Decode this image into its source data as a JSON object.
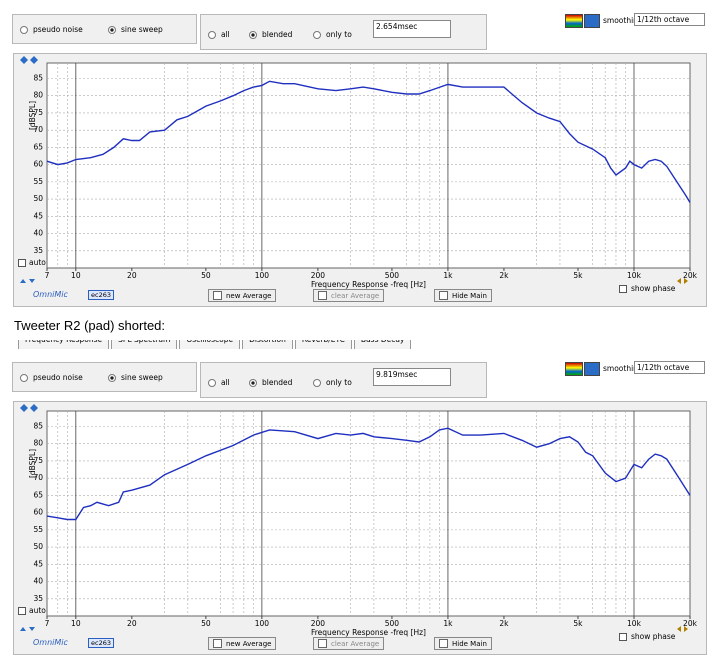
{
  "caption": "Tweeter R2 (pad) shorted:",
  "panels": [
    {
      "source_options": [
        "pseudo noise",
        "sine sweep"
      ],
      "window_options": [
        "all",
        "blended",
        "only to"
      ],
      "time": "2.654msec",
      "smoothing_label": "smoothing",
      "smoothing": "1/12th octave",
      "auto": "auto",
      "brand": "OmniMic",
      "mic": "ec263",
      "buttons": [
        "new Average",
        "clear Average",
        "Hide Main"
      ],
      "show_phase": "show phase"
    },
    {
      "tabs": [
        "Frequency Response",
        "SPL Spectrum",
        "Oscilloscope",
        "Distortion",
        "Reverb/ETC",
        "Bass Decay"
      ],
      "source_options": [
        "pseudo noise",
        "sine sweep"
      ],
      "window_options": [
        "all",
        "blended",
        "only to"
      ],
      "time": "9.819msec",
      "smoothing_label": "smoothing",
      "smoothing": "1/12th octave",
      "auto": "auto",
      "brand": "OmniMic",
      "mic": "ec263",
      "buttons": [
        "new Average",
        "clear Average",
        "Hide Main"
      ],
      "show_phase": "show phase"
    }
  ],
  "chart_data": [
    {
      "type": "line",
      "x_label": "Frequency Response -freq [Hz]",
      "y_label": "[dBSPL]",
      "log_x": true,
      "grid": true,
      "color": "#1f2fbf",
      "xlim": [
        7,
        20000
      ],
      "ylim": [
        30,
        89.5
      ],
      "xticks": [
        7,
        10,
        20,
        50,
        100,
        200,
        500,
        {
          "value": 1000,
          "label": "1k"
        },
        {
          "value": 2000,
          "label": "2k"
        },
        {
          "value": 5000,
          "label": "5k"
        },
        {
          "value": 10000,
          "label": "10k"
        },
        {
          "value": 20000,
          "label": "20k"
        }
      ],
      "minor_xgrid": [
        8,
        9,
        30,
        40,
        60,
        70,
        80,
        90,
        300,
        400,
        600,
        700,
        800,
        900,
        3000,
        4000,
        6000,
        7000,
        8000,
        9000
      ],
      "major_xgrid": [
        10,
        100,
        1000,
        10000
      ],
      "yticks": [
        35,
        40,
        45,
        50,
        55,
        60,
        65,
        70,
        75,
        80,
        85
      ],
      "x": [
        7,
        8,
        9,
        10,
        12,
        14,
        16,
        18,
        20,
        22,
        25,
        30,
        35,
        40,
        50,
        60,
        70,
        80,
        90,
        100,
        110,
        130,
        150,
        200,
        250,
        300,
        350,
        400,
        500,
        600,
        700,
        800,
        1000,
        1200,
        1500,
        2000,
        2500,
        3000,
        3500,
        4000,
        4500,
        5000,
        6000,
        7000,
        7500,
        8000,
        9000,
        9500,
        10000,
        11000,
        12000,
        13000,
        14000,
        15000,
        17000,
        19000,
        20000
      ],
      "values": [
        61,
        60,
        60.5,
        61.5,
        62,
        63,
        65,
        67.5,
        67,
        67,
        69.5,
        70,
        73,
        74,
        77,
        78.5,
        80,
        81.5,
        82.5,
        83,
        84.2,
        83.5,
        83.5,
        82,
        81.5,
        82,
        82.5,
        82,
        81,
        80.5,
        80.5,
        81.5,
        83.3,
        82.5,
        82.5,
        82.5,
        78,
        75,
        73.5,
        72.5,
        69,
        66.5,
        64.5,
        62,
        59,
        57,
        59,
        61,
        60,
        59,
        61,
        61.5,
        61,
        59.5,
        55,
        51,
        49
      ]
    },
    {
      "type": "line",
      "x_label": "Frequency Response -freq [Hz]",
      "y_label": "[dBSPL]",
      "log_x": true,
      "grid": true,
      "color": "#1f2fbf",
      "xlim": [
        7,
        20000
      ],
      "ylim": [
        30,
        89.5
      ],
      "xticks": [
        7,
        10,
        20,
        50,
        100,
        200,
        500,
        {
          "value": 1000,
          "label": "1k"
        },
        {
          "value": 2000,
          "label": "2k"
        },
        {
          "value": 5000,
          "label": "5k"
        },
        {
          "value": 10000,
          "label": "10k"
        },
        {
          "value": 20000,
          "label": "20k"
        }
      ],
      "minor_xgrid": [
        8,
        9,
        30,
        40,
        60,
        70,
        80,
        90,
        300,
        400,
        600,
        700,
        800,
        900,
        3000,
        4000,
        6000,
        7000,
        8000,
        9000
      ],
      "major_xgrid": [
        10,
        100,
        1000,
        10000
      ],
      "yticks": [
        35,
        40,
        45,
        50,
        55,
        60,
        65,
        70,
        75,
        80,
        85
      ],
      "x": [
        7,
        8,
        9,
        10,
        11,
        12,
        13,
        15,
        17,
        18,
        20,
        25,
        30,
        40,
        50,
        70,
        90,
        110,
        150,
        200,
        250,
        300,
        350,
        400,
        500,
        600,
        700,
        800,
        900,
        1000,
        1200,
        1500,
        2000,
        2500,
        3000,
        3500,
        4000,
        4500,
        5000,
        5500,
        6000,
        7000,
        8000,
        9000,
        10000,
        11000,
        12000,
        13000,
        14000,
        15000,
        17000,
        20000
      ],
      "values": [
        59,
        58.5,
        58,
        58,
        61.5,
        62,
        63,
        62,
        63,
        66,
        66.5,
        68,
        71,
        74,
        76.5,
        79.5,
        82.5,
        84,
        83.5,
        81.5,
        83,
        82.5,
        83,
        82,
        81.5,
        81,
        80.5,
        82,
        84,
        84.5,
        82.5,
        82.5,
        83,
        81,
        79,
        80,
        81.5,
        82,
        80.5,
        77.5,
        76.5,
        71.5,
        69,
        70,
        74,
        73,
        75.5,
        77,
        76.5,
        75.5,
        71,
        65
      ]
    }
  ]
}
